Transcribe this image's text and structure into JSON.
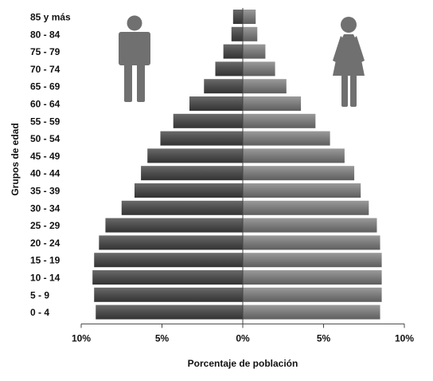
{
  "chart_data": {
    "type": "bar",
    "orientation": "horizontal",
    "layout": "population-pyramid",
    "title": "",
    "xlabel": "Porcentaje de población",
    "ylabel": "Grupos de edad",
    "xlim": [
      -10,
      10
    ],
    "x_tick_labels": [
      "10%",
      "5%",
      "0%",
      "5%",
      "10%"
    ],
    "x_tick_values": [
      -10,
      -5,
      0,
      5,
      10
    ],
    "grid": false,
    "categories": [
      "0 -  4",
      "5 -  9",
      "10 - 14",
      "15 - 19",
      "20 - 24",
      "25 - 29",
      "30 - 34",
      "35 - 39",
      "40 - 44",
      "45 - 49",
      "50 - 54",
      "55 - 59",
      "60 - 64",
      "65 - 69",
      "70 - 74",
      "75 - 79",
      "80 - 84",
      "85 y más"
    ],
    "series": [
      {
        "side": "left",
        "legend_icon": "male-figure-icon",
        "values": [
          9.1,
          9.2,
          9.3,
          9.2,
          8.9,
          8.5,
          7.5,
          6.7,
          6.3,
          5.9,
          5.1,
          4.3,
          3.3,
          2.4,
          1.7,
          1.2,
          0.7,
          0.6
        ]
      },
      {
        "side": "right",
        "legend_icon": "female-figure-icon",
        "values": [
          8.5,
          8.6,
          8.6,
          8.6,
          8.5,
          8.3,
          7.8,
          7.3,
          6.9,
          6.3,
          5.4,
          4.5,
          3.6,
          2.7,
          2.0,
          1.4,
          0.9,
          0.8
        ]
      }
    ],
    "colors": {
      "left_bar": "#4d4d4d",
      "right_bar": "#7c7c7c",
      "axis": "#444444"
    }
  }
}
